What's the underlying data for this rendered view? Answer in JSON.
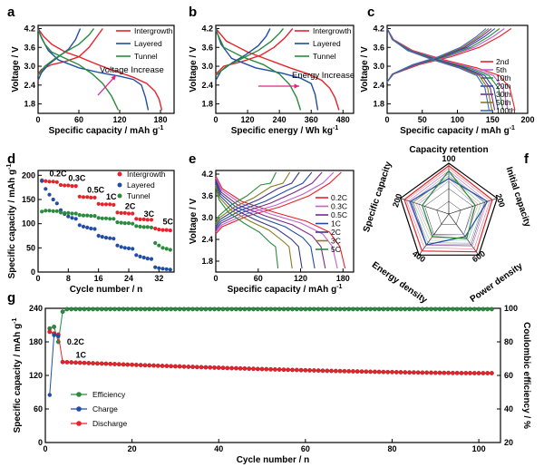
{
  "colors": {
    "red": "#e8222a",
    "blue": "#1f4ea3",
    "green": "#2a8a3e",
    "magenta": "#e0208f"
  },
  "chart_data": [
    {
      "panel": "a",
      "type": "line",
      "xlabel": "Specific capacity / mAh g",
      "xlabel_sup": "-1",
      "ylabel": "Voltage / V",
      "xlim": [
        0,
        200
      ],
      "ylim": [
        1.5,
        4.3
      ],
      "xticks": [
        0,
        60,
        120,
        180
      ],
      "yticks": [
        1.8,
        2.4,
        3.0,
        3.6,
        4.2
      ],
      "annotation": "Voltage Increase",
      "series": [
        {
          "name": "Intergrowth",
          "color": "#e8222a",
          "charge": [
            [
              0,
              2.75
            ],
            [
              5,
              2.9
            ],
            [
              20,
              3.05
            ],
            [
              40,
              3.15
            ],
            [
              60,
              3.3
            ],
            [
              75,
              3.6
            ],
            [
              85,
              3.9
            ],
            [
              95,
              4.2
            ]
          ],
          "discharge": [
            [
              0,
              4.2
            ],
            [
              8,
              3.95
            ],
            [
              20,
              3.7
            ],
            [
              40,
              3.45
            ],
            [
              60,
              3.3
            ],
            [
              80,
              3.12
            ],
            [
              100,
              2.95
            ],
            [
              120,
              2.8
            ],
            [
              140,
              2.65
            ],
            [
              160,
              2.45
            ],
            [
              172,
              2.2
            ],
            [
              178,
              1.95
            ],
            [
              182,
              1.6
            ]
          ]
        },
        {
          "name": "Layered",
          "color": "#1f4ea3",
          "charge": [
            [
              0,
              2.55
            ],
            [
              5,
              2.8
            ],
            [
              15,
              3.05
            ],
            [
              30,
              3.3
            ],
            [
              45,
              3.55
            ],
            [
              55,
              3.85
            ],
            [
              62,
              4.2
            ]
          ],
          "discharge": [
            [
              0,
              4.2
            ],
            [
              5,
              3.9
            ],
            [
              15,
              3.5
            ],
            [
              30,
              3.2
            ],
            [
              60,
              2.95
            ],
            [
              90,
              2.8
            ],
            [
              120,
              2.68
            ],
            [
              140,
              2.58
            ],
            [
              152,
              2.4
            ],
            [
              158,
              2.0
            ],
            [
              162,
              1.6
            ]
          ]
        },
        {
          "name": "Tunnel",
          "color": "#2a8a3e",
          "charge": [
            [
              0,
              2.7
            ],
            [
              10,
              3.0
            ],
            [
              25,
              3.25
            ],
            [
              40,
              3.45
            ],
            [
              60,
              3.7
            ],
            [
              75,
              4.0
            ],
            [
              82,
              4.2
            ]
          ],
          "discharge": [
            [
              0,
              4.15
            ],
            [
              10,
              3.7
            ],
            [
              20,
              3.45
            ],
            [
              40,
              3.25
            ],
            [
              60,
              3.05
            ],
            [
              80,
              2.75
            ],
            [
              95,
              2.45
            ],
            [
              108,
              2.05
            ],
            [
              118,
              1.6
            ]
          ]
        }
      ]
    },
    {
      "panel": "b",
      "type": "line",
      "xlabel": "Specific energy / Wh kg",
      "xlabel_sup": "-1",
      "ylabel": "Voltage / V",
      "xlim": [
        0,
        520
      ],
      "ylim": [
        1.5,
        4.3
      ],
      "xticks": [
        0,
        120,
        240,
        360,
        480
      ],
      "yticks": [
        1.8,
        2.4,
        3.0,
        3.6,
        4.2
      ],
      "annotation": "Energy Increase",
      "series": [
        {
          "name": "Intergrowth",
          "color": "#e8222a",
          "charge": [
            [
              0,
              2.75
            ],
            [
              30,
              3.0
            ],
            [
              100,
              3.15
            ],
            [
              170,
              3.35
            ],
            [
              220,
              3.6
            ],
            [
              260,
              3.9
            ],
            [
              290,
              4.2
            ]
          ],
          "discharge": [
            [
              0,
              4.2
            ],
            [
              40,
              3.8
            ],
            [
              120,
              3.45
            ],
            [
              200,
              3.2
            ],
            [
              280,
              2.95
            ],
            [
              350,
              2.75
            ],
            [
              400,
              2.55
            ],
            [
              430,
              2.3
            ],
            [
              450,
              2.0
            ],
            [
              465,
              1.6
            ]
          ]
        },
        {
          "name": "Layered",
          "color": "#1f4ea3",
          "charge": [
            [
              0,
              2.55
            ],
            [
              20,
              2.85
            ],
            [
              60,
              3.1
            ],
            [
              110,
              3.35
            ],
            [
              160,
              3.65
            ],
            [
              190,
              3.95
            ],
            [
              205,
              4.2
            ]
          ],
          "discharge": [
            [
              0,
              4.2
            ],
            [
              20,
              3.7
            ],
            [
              60,
              3.25
            ],
            [
              150,
              2.95
            ],
            [
              250,
              2.78
            ],
            [
              320,
              2.62
            ],
            [
              360,
              2.45
            ],
            [
              375,
              2.1
            ],
            [
              385,
              1.6
            ]
          ]
        },
        {
          "name": "Tunnel",
          "color": "#2a8a3e",
          "charge": [
            [
              0,
              2.7
            ],
            [
              40,
              3.0
            ],
            [
              100,
              3.25
            ],
            [
              160,
              3.5
            ],
            [
              210,
              3.8
            ],
            [
              240,
              4.05
            ],
            [
              255,
              4.2
            ]
          ],
          "discharge": [
            [
              0,
              4.15
            ],
            [
              30,
              3.6
            ],
            [
              100,
              3.3
            ],
            [
              180,
              3.05
            ],
            [
              240,
              2.75
            ],
            [
              280,
              2.4
            ],
            [
              305,
              2.0
            ],
            [
              320,
              1.6
            ]
          ]
        }
      ]
    },
    {
      "panel": "c",
      "type": "line",
      "xlabel": "Specific capacity / mAh g",
      "xlabel_sup": "-1",
      "ylabel": "Voltage / V",
      "xlim": [
        0,
        200
      ],
      "ylim": [
        1.5,
        4.3
      ],
      "xticks": [
        0,
        50,
        100,
        150,
        200
      ],
      "yticks": [
        1.8,
        2.4,
        3.0,
        3.6,
        4.2
      ],
      "series": [
        {
          "name": "2nd",
          "color": "#e8222a",
          "capacity": 182
        },
        {
          "name": "5th",
          "color": "#c060d0",
          "capacity": 172
        },
        {
          "name": "10th",
          "color": "#2a8a3e",
          "capacity": 165
        },
        {
          "name": "20th",
          "color": "#1f4ea3",
          "capacity": 158
        },
        {
          "name": "30th",
          "color": "#7a2a8a",
          "capacity": 153
        },
        {
          "name": "50th",
          "color": "#8a7a20",
          "capacity": 149
        },
        {
          "name": "100th",
          "color": "#3a6ac0",
          "capacity": 145
        }
      ]
    },
    {
      "panel": "d",
      "type": "scatter",
      "xlabel": "Cycle number / n",
      "ylabel": "Specific capacity / mAh g",
      "ylabel_sup": "-1",
      "xlim": [
        0,
        36
      ],
      "ylim": [
        0,
        210
      ],
      "xticks": [
        0,
        8,
        16,
        24,
        32
      ],
      "yticks": [
        0,
        50,
        100,
        150,
        200
      ],
      "rate_labels": [
        {
          "text": "0.2C",
          "x": 3,
          "y": 198
        },
        {
          "text": "0.3C",
          "x": 8,
          "y": 188
        },
        {
          "text": "0.5C",
          "x": 13,
          "y": 164
        },
        {
          "text": "1C",
          "x": 18,
          "y": 150
        },
        {
          "text": "2C",
          "x": 23,
          "y": 130
        },
        {
          "text": "3C",
          "x": 28,
          "y": 114
        },
        {
          "text": "5C",
          "x": 33,
          "y": 98
        }
      ],
      "series": [
        {
          "name": "Intergrowth",
          "color": "#e8222a",
          "values": [
            190,
            188,
            187,
            187,
            186,
            180,
            179,
            179,
            178,
            178,
            156,
            155,
            155,
            154,
            154,
            141,
            140,
            140,
            140,
            139,
            123,
            122,
            122,
            121,
            121,
            110,
            109,
            109,
            108,
            108,
            90,
            88,
            87,
            87,
            86
          ]
        },
        {
          "name": "Layered",
          "color": "#1f4ea3",
          "values": [
            188,
            172,
            160,
            150,
            142,
            128,
            120,
            115,
            112,
            110,
            97,
            94,
            92,
            90,
            89,
            75,
            73,
            71,
            70,
            69,
            55,
            52,
            50,
            49,
            48,
            35,
            32,
            30,
            28,
            27,
            10,
            8,
            7,
            6,
            5
          ]
        },
        {
          "name": "Tunnel",
          "color": "#2a8a3e",
          "values": [
            125,
            127,
            127,
            126,
            126,
            123,
            122,
            122,
            121,
            121,
            118,
            117,
            117,
            116,
            116,
            112,
            111,
            111,
            110,
            110,
            103,
            102,
            101,
            101,
            100,
            95,
            94,
            93,
            93,
            92,
            60,
            55,
            50,
            48,
            46
          ]
        }
      ]
    },
    {
      "panel": "e",
      "type": "line",
      "xlabel": "Specific capacity / mAh g",
      "xlabel_sup": "-1",
      "ylabel": "Voltage / V",
      "xlim": [
        0,
        195
      ],
      "ylim": [
        1.5,
        4.3
      ],
      "xticks": [
        0,
        60,
        120,
        180
      ],
      "yticks": [
        1.8,
        2.4,
        3.0,
        3.6,
        4.2
      ],
      "series": [
        {
          "name": "0.2C",
          "color": "#e8222a",
          "capacity": 183
        },
        {
          "name": "0.3C",
          "color": "#c060d0",
          "capacity": 172
        },
        {
          "name": "0.5C",
          "color": "#7a2a8a",
          "capacity": 155
        },
        {
          "name": "1C",
          "color": "#1f4ea3",
          "capacity": 140
        },
        {
          "name": "2C",
          "color": "#3a3a8a",
          "capacity": 122
        },
        {
          "name": "3C",
          "color": "#8a7a20",
          "capacity": 108
        },
        {
          "name": "5C",
          "color": "#2a8a3e",
          "capacity": 88
        }
      ]
    },
    {
      "panel": "f",
      "type": "radar",
      "axes": [
        "Capacity retention",
        "Initial capacity",
        "Power density",
        "Energy density",
        "Specific capacity"
      ],
      "axis_ticks": [
        "100",
        "200",
        "600",
        "400",
        "200"
      ],
      "series": [
        {
          "name": "Intergrowth",
          "color": "#e8222a",
          "values": [
            0.95,
            0.9,
            0.92,
            0.9,
            0.92
          ]
        },
        {
          "name": "Layered",
          "color": "#1f4ea3",
          "values": [
            0.7,
            0.8,
            0.55,
            0.75,
            0.8
          ]
        },
        {
          "name": "Tunnel",
          "color": "#2a8a3e",
          "values": [
            0.85,
            0.55,
            0.6,
            0.55,
            0.55
          ]
        }
      ]
    },
    {
      "panel": "g",
      "type": "scatter",
      "xlabel": "Cycle number / n",
      "ylabel": "Specific capacity / mAh g",
      "ylabel_sup": "-1",
      "y2label": "Coulombic efficiency / %",
      "xlim": [
        0,
        105
      ],
      "ylim": [
        0,
        240
      ],
      "y2lim": [
        20,
        100
      ],
      "xticks": [
        0,
        20,
        40,
        60,
        80,
        100
      ],
      "yticks": [
        0,
        60,
        120,
        180,
        240
      ],
      "y2ticks": [
        20,
        40,
        60,
        80,
        100
      ],
      "rate_labels": [
        {
          "text": "0.2C",
          "x": 5,
          "y": 175
        },
        {
          "text": "1C",
          "x": 7,
          "y": 152
        }
      ],
      "charge_first": [
        [
          1,
          85
        ],
        [
          2,
          192
        ],
        [
          3,
          190
        ]
      ],
      "discharge_first": [
        [
          1,
          198
        ],
        [
          2,
          195
        ],
        [
          3,
          193
        ]
      ],
      "discharge_start": 144,
      "discharge_end": 124,
      "discharge_from_cycle": 4,
      "discharge_to_cycle": 103,
      "efficiency_first": [
        [
          1,
          88
        ],
        [
          2,
          89
        ],
        [
          3,
          80
        ],
        [
          4,
          98
        ]
      ],
      "efficiency_steady": 99.5,
      "series": [
        {
          "name": "Efficiency",
          "color": "#2a8a3e"
        },
        {
          "name": "Charge",
          "color": "#1f4ea3"
        },
        {
          "name": "Discharge",
          "color": "#e8222a"
        }
      ]
    }
  ]
}
